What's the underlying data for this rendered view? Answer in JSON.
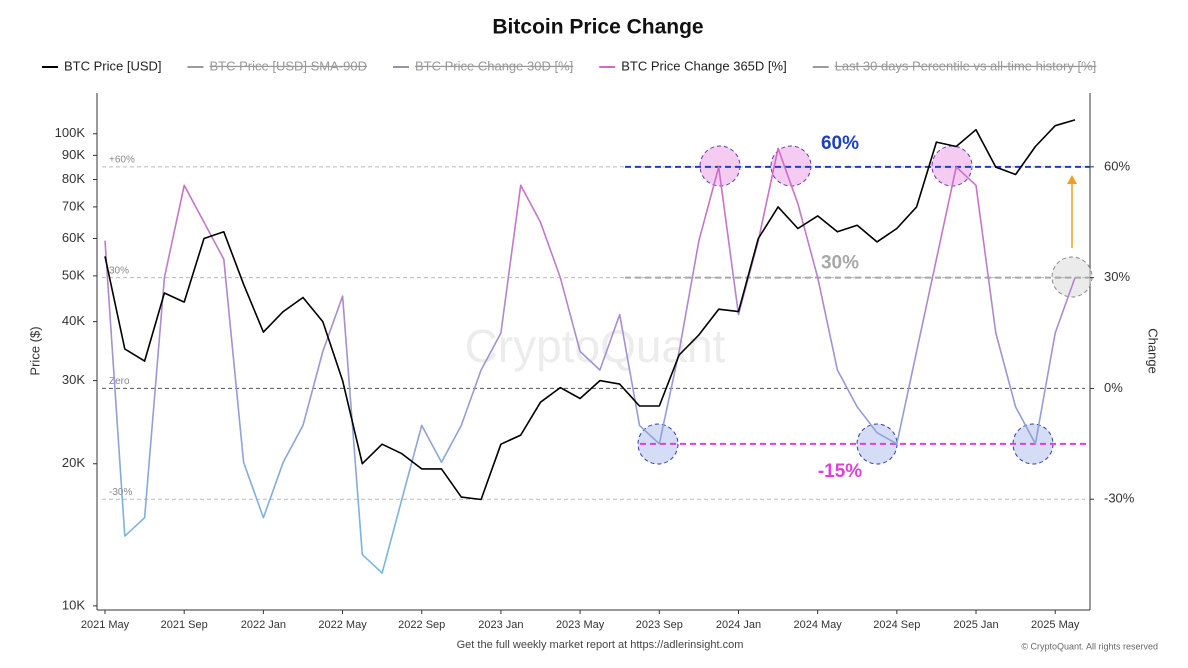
{
  "chart_data": {
    "type": "line",
    "title": "Bitcoin Price Change",
    "y_label": "Price ($)",
    "y2_label": "Change",
    "watermark": "CryptoQuant",
    "footer": "Get the full weekly market report at https://adlerinsight.com",
    "copyright": "© CryptoQuant. All rights reserved",
    "x": [
      "2021-05",
      "2021-06",
      "2021-07",
      "2021-08",
      "2021-09",
      "2021-10",
      "2021-11",
      "2021-12",
      "2022-01",
      "2022-02",
      "2022-03",
      "2022-04",
      "2022-05",
      "2022-06",
      "2022-07",
      "2022-08",
      "2022-09",
      "2022-10",
      "2022-11",
      "2022-12",
      "2023-01",
      "2023-02",
      "2023-03",
      "2023-04",
      "2023-05",
      "2023-06",
      "2023-07",
      "2023-08",
      "2023-09",
      "2023-10",
      "2023-11",
      "2023-12",
      "2024-01",
      "2024-02",
      "2024-03",
      "2024-04",
      "2024-05",
      "2024-06",
      "2024-07",
      "2024-08",
      "2024-09",
      "2024-10",
      "2024-11",
      "2024-12",
      "2025-01",
      "2025-02",
      "2025-03",
      "2025-04",
      "2025-05",
      "2025-06"
    ],
    "xlim": [
      "2021-05",
      "2025-06"
    ],
    "xticks": [
      {
        "value": "2021-05",
        "label": "2021 May"
      },
      {
        "value": "2021-09",
        "label": "2021 Sep"
      },
      {
        "value": "2022-01",
        "label": "2022 Jan"
      },
      {
        "value": "2022-05",
        "label": "2022 May"
      },
      {
        "value": "2022-09",
        "label": "2022 Sep"
      },
      {
        "value": "2023-01",
        "label": "2023 Jan"
      },
      {
        "value": "2023-05",
        "label": "2023 May"
      },
      {
        "value": "2023-09",
        "label": "2023 Sep"
      },
      {
        "value": "2024-01",
        "label": "2024 Jan"
      },
      {
        "value": "2024-05",
        "label": "2024 May"
      },
      {
        "value": "2024-09",
        "label": "2024 Sep"
      },
      {
        "value": "2025-01",
        "label": "2025 Jan"
      },
      {
        "value": "2025-05",
        "label": "2025 May"
      }
    ],
    "ylog": true,
    "ylim": [
      9800,
      122000
    ],
    "yticks": [
      {
        "value": 10000,
        "label": "10K"
      },
      {
        "value": 20000,
        "label": "20K"
      },
      {
        "value": 30000,
        "label": "30K"
      },
      {
        "value": 40000,
        "label": "40K"
      },
      {
        "value": 50000,
        "label": "50K"
      },
      {
        "value": 60000,
        "label": "60K"
      },
      {
        "value": 70000,
        "label": "70K"
      },
      {
        "value": 80000,
        "label": "80K"
      },
      {
        "value": 90000,
        "label": "90K"
      },
      {
        "value": 100000,
        "label": "100K"
      }
    ],
    "y2lim": [
      -60,
      80
    ],
    "y2ticks": [
      {
        "value": -30,
        "label": "-30%"
      },
      {
        "value": 0,
        "label": "0%"
      },
      {
        "value": 30,
        "label": "30%"
      },
      {
        "value": 60,
        "label": "60%"
      }
    ],
    "inner_levels": [
      {
        "value": 60,
        "label": "+60%"
      },
      {
        "value": 30,
        "label": "30%"
      },
      {
        "value": 0,
        "label": "Zero"
      },
      {
        "value": -30,
        "label": "-30%"
      }
    ],
    "reference_lines": [
      {
        "value": 60,
        "label": "60%",
        "color": "#1d3fc4"
      },
      {
        "value": 30,
        "label": "30%",
        "color": "#a8a8a8"
      },
      {
        "value": -15,
        "label": "-15%",
        "color": "#e040d8"
      }
    ],
    "series": [
      {
        "name": "BTC Price [USD]",
        "color": "#000000",
        "values": [
          55000,
          35000,
          33000,
          46000,
          44000,
          60000,
          62000,
          48000,
          38000,
          42000,
          45000,
          40000,
          30000,
          20000,
          22000,
          21000,
          19500,
          19500,
          17000,
          16800,
          22000,
          23000,
          27000,
          29000,
          27500,
          30000,
          29500,
          26500,
          26500,
          34000,
          37500,
          42500,
          42000,
          60000,
          70000,
          63000,
          67000,
          62000,
          64000,
          59000,
          63000,
          70000,
          96000,
          94000,
          102000,
          85000,
          82000,
          94000,
          104000,
          107000
        ]
      },
      {
        "name": "BTC Price [USD] SMA-90D",
        "color": "#9a9a9a",
        "hidden": true
      },
      {
        "name": "BTC Price Change 30D [%]",
        "color": "#9b8fb0",
        "hidden": true
      },
      {
        "name": "BTC Price Change 365D [%]",
        "color": "#d06cc4",
        "color_low": "#78b6de",
        "axis": "y2",
        "values": [
          40,
          -40,
          -35,
          30,
          55,
          45,
          35,
          -20,
          -35,
          -20,
          -10,
          10,
          25,
          -45,
          -50,
          -30,
          -10,
          -20,
          -10,
          5,
          15,
          55,
          45,
          30,
          10,
          5,
          20,
          -10,
          -15,
          10,
          40,
          60,
          20,
          40,
          65,
          50,
          30,
          5,
          -5,
          -12,
          -15,
          10,
          35,
          60,
          55,
          15,
          -5,
          -15,
          15,
          30
        ]
      },
      {
        "name": "Last 30 days Percentile vs all-time history [%]",
        "color": "#9a9a9a",
        "hidden": true
      }
    ]
  }
}
